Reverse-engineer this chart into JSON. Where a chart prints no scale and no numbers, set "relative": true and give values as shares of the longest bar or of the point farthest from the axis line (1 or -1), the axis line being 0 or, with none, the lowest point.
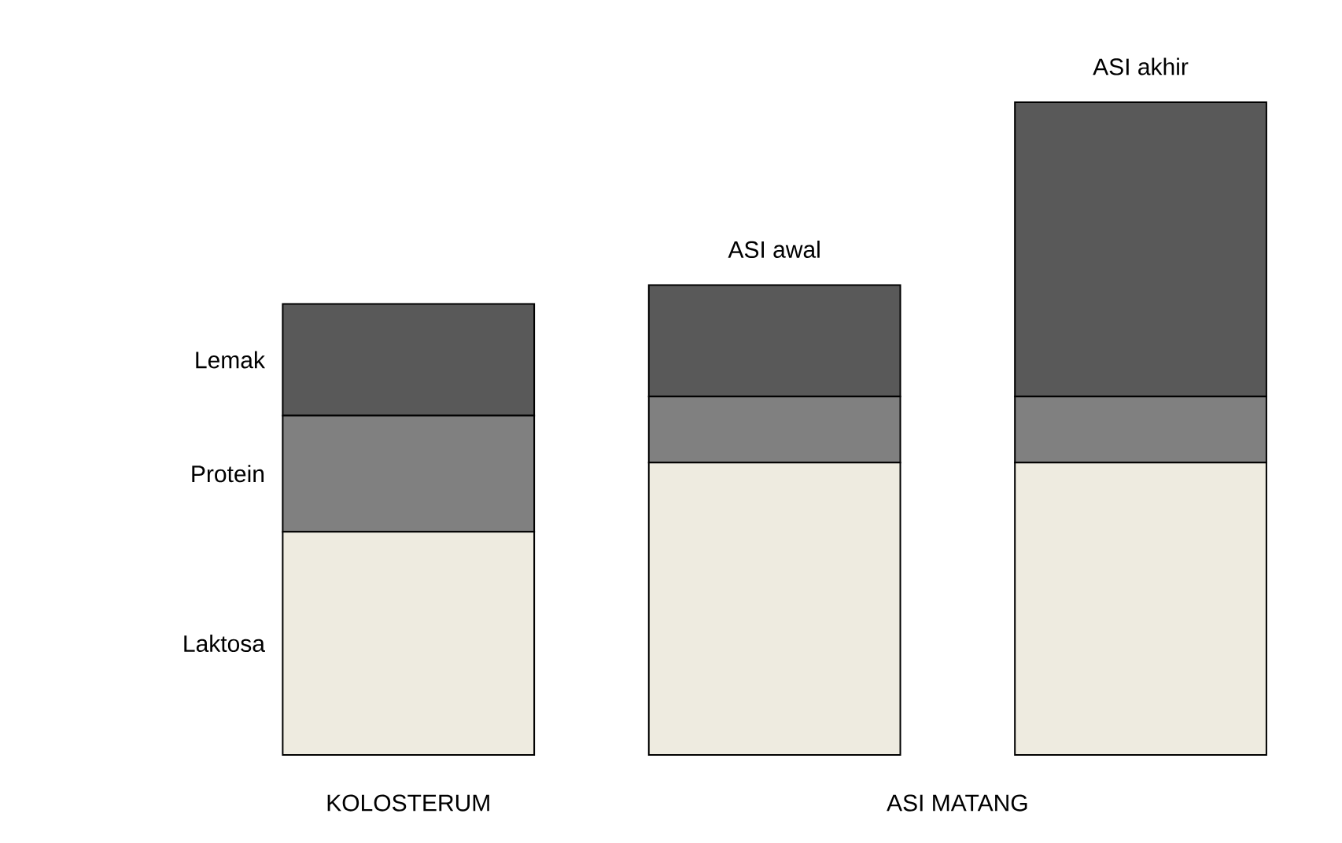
{
  "chart_data": {
    "type": "bar",
    "stacked": true,
    "relative": true,
    "categories": [
      null,
      "ASI awal",
      "ASI akhir"
    ],
    "series": [
      {
        "name": "Laktosa",
        "color": "#eeebe0",
        "values": [
          0.342,
          0.448,
          0.448
        ]
      },
      {
        "name": "Protein",
        "color": "#808080",
        "values": [
          0.178,
          0.101,
          0.101
        ]
      },
      {
        "name": "Lemak",
        "color": "#595959",
        "values": [
          0.171,
          0.171,
          0.451
        ]
      }
    ],
    "annotations": [
      "KOLOSTERUM",
      "ASI MATANG"
    ]
  }
}
